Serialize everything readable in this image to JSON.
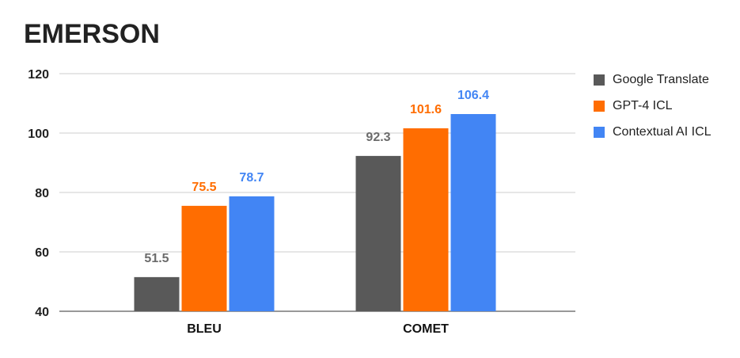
{
  "chart_data": {
    "type": "bar",
    "title": "EMERSON",
    "categories": [
      "BLEU",
      "COMET"
    ],
    "series": [
      {
        "name": "Google Translate",
        "color": "#595959",
        "values": [
          51.5,
          92.3
        ]
      },
      {
        "name": "GPT-4 ICL",
        "color": "#ff6d01",
        "values": [
          75.5,
          101.6
        ]
      },
      {
        "name": "Contextual AI ICL",
        "color": "#4285f4",
        "values": [
          78.7,
          106.4
        ]
      }
    ],
    "ylim": [
      40,
      120
    ],
    "yticks": [
      40,
      60,
      80,
      100,
      120
    ],
    "grid": true,
    "legend": "right",
    "data_labels": true
  }
}
